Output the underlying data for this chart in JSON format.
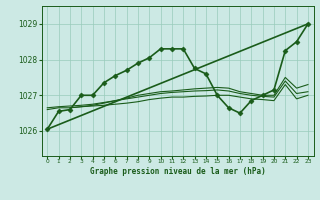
{
  "title": "Graphe pression niveau de la mer (hPa)",
  "xlim": [
    -0.5,
    23.5
  ],
  "ylim": [
    1025.3,
    1029.5
  ],
  "yticks": [
    1026,
    1027,
    1028,
    1029
  ],
  "xticks": [
    0,
    1,
    2,
    3,
    4,
    5,
    6,
    7,
    8,
    9,
    10,
    11,
    12,
    13,
    14,
    15,
    16,
    17,
    18,
    19,
    20,
    21,
    22,
    23
  ],
  "bg_color": "#cce9e4",
  "grid_color": "#99ccbb",
  "line_color": "#1a5c1a",
  "series": [
    {
      "x": [
        0,
        1,
        2,
        3,
        4,
        5,
        6,
        7,
        8,
        9,
        10,
        11,
        12,
        13,
        14,
        15,
        16,
        17,
        18,
        19,
        20,
        21,
        22,
        23
      ],
      "y": [
        1026.05,
        1026.55,
        1026.6,
        1027.0,
        1027.0,
        1027.35,
        1027.55,
        1027.7,
        1027.9,
        1028.05,
        1028.3,
        1028.3,
        1028.3,
        1027.75,
        1027.6,
        1027.0,
        1026.65,
        1026.5,
        1026.85,
        1027.0,
        1027.15,
        1028.25,
        1028.5,
        1029.0
      ],
      "marker": "D",
      "ms": 2.5,
      "lw": 1.2
    },
    {
      "x": [
        0,
        23
      ],
      "y": [
        1026.05,
        1029.0
      ],
      "marker": null,
      "ms": 0,
      "lw": 1.2
    },
    {
      "x": [
        0,
        1,
        2,
        3,
        4,
        5,
        6,
        7,
        8,
        9,
        10,
        11,
        12,
        13,
        14,
        15,
        16,
        17,
        18,
        19,
        20,
        21,
        22,
        23
      ],
      "y": [
        1026.6,
        1026.65,
        1026.65,
        1026.68,
        1026.7,
        1026.72,
        1026.75,
        1026.78,
        1026.82,
        1026.88,
        1026.92,
        1026.95,
        1026.95,
        1026.97,
        1026.98,
        1027.0,
        1027.0,
        1026.95,
        1026.9,
        1026.88,
        1026.85,
        1027.3,
        1026.9,
        1027.0
      ],
      "marker": null,
      "ms": 0,
      "lw": 0.8
    },
    {
      "x": [
        0,
        1,
        2,
        3,
        4,
        5,
        6,
        7,
        8,
        9,
        10,
        11,
        12,
        13,
        14,
        15,
        16,
        17,
        18,
        19,
        20,
        21,
        22,
        23
      ],
      "y": [
        1026.65,
        1026.68,
        1026.7,
        1026.72,
        1026.75,
        1026.8,
        1026.85,
        1026.9,
        1026.95,
        1027.0,
        1027.05,
        1027.08,
        1027.1,
        1027.12,
        1027.13,
        1027.15,
        1027.12,
        1027.05,
        1027.0,
        1026.97,
        1026.95,
        1027.4,
        1027.05,
        1027.1
      ],
      "marker": null,
      "ms": 0,
      "lw": 0.8
    },
    {
      "x": [
        2,
        3,
        4,
        5,
        6,
        7,
        8,
        9,
        10,
        11,
        12,
        13,
        14,
        15,
        16,
        17,
        18,
        19,
        20,
        21,
        22,
        23
      ],
      "y": [
        1026.65,
        1026.68,
        1026.72,
        1026.78,
        1026.85,
        1026.92,
        1027.0,
        1027.05,
        1027.1,
        1027.12,
        1027.15,
        1027.18,
        1027.2,
        1027.22,
        1027.2,
        1027.1,
        1027.05,
        1027.0,
        1027.0,
        1027.5,
        1027.2,
        1027.3
      ],
      "marker": null,
      "ms": 0,
      "lw": 0.8
    }
  ]
}
